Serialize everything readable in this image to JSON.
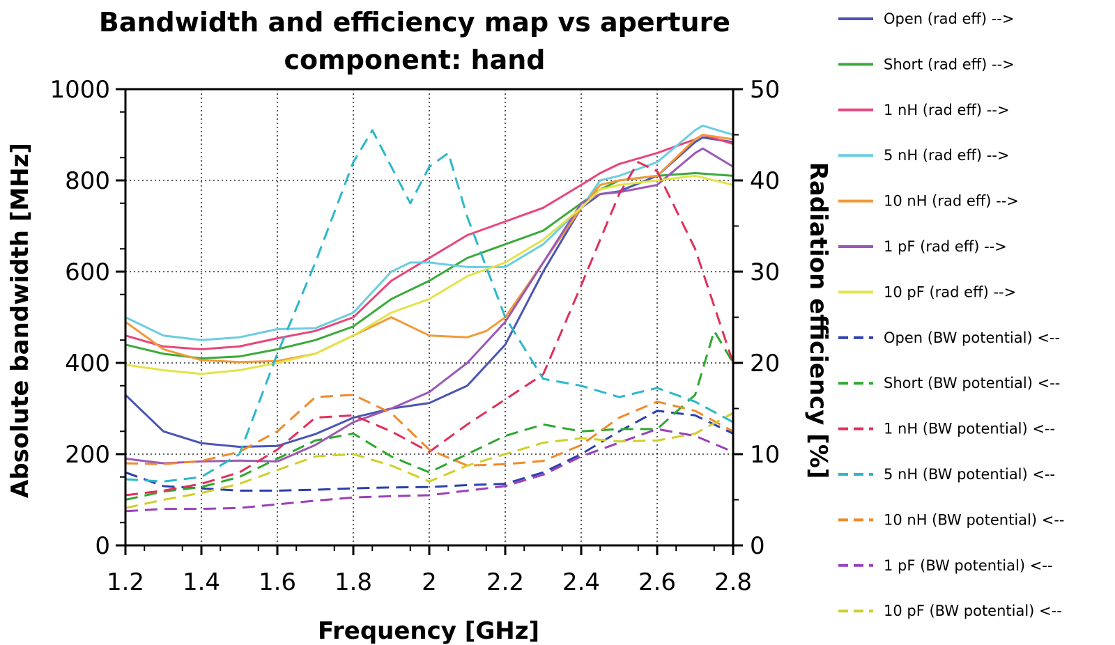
{
  "chart_data": {
    "type": "line",
    "title": "Bandwidth and efficiency map vs aperture",
    "subtitle": "component: hand",
    "xlabel": "Frequency [GHz]",
    "ylabel": "Absolute bandwidth [MHz]",
    "y2label": "Radiation efficiency [%]",
    "xlim": [
      1.2,
      2.8
    ],
    "ylim": [
      0,
      1000
    ],
    "y2lim": [
      0,
      50
    ],
    "x_ticks": [
      "1.2",
      "1.4",
      "1.6",
      "1.8",
      "2",
      "2.2",
      "2.4",
      "2.6",
      "2.8"
    ],
    "y_ticks": [
      "0",
      "200",
      "400",
      "600",
      "800",
      "1000"
    ],
    "y2_ticks": [
      "0",
      "10",
      "20",
      "30",
      "40",
      "50"
    ],
    "grid": true,
    "legend_position": "right",
    "series": [
      {
        "name": "Open (rad eff) -->",
        "color": "#4a55b5",
        "dash": false,
        "axis": "right",
        "x": [
          1.2,
          1.3,
          1.4,
          1.5,
          1.6,
          1.7,
          1.8,
          1.9,
          2.0,
          2.1,
          2.2,
          2.3,
          2.4,
          2.45,
          2.5,
          2.6,
          2.7,
          2.72,
          2.8
        ],
        "y": [
          16.5,
          12.5,
          11.2,
          10.8,
          10.9,
          12.2,
          14.0,
          15.0,
          15.6,
          17.5,
          22.0,
          30.0,
          37.0,
          38.5,
          38.8,
          40.5,
          44.2,
          44.7,
          44.2
        ]
      },
      {
        "name": "Short (rad eff) -->",
        "color": "#3aaa3a",
        "dash": false,
        "axis": "right",
        "x": [
          1.2,
          1.3,
          1.4,
          1.5,
          1.6,
          1.7,
          1.8,
          1.9,
          2.0,
          2.1,
          2.2,
          2.3,
          2.4,
          2.45,
          2.5,
          2.6,
          2.7,
          2.8
        ],
        "y": [
          22.0,
          21.0,
          20.5,
          20.7,
          21.5,
          22.5,
          24.0,
          27.0,
          29.0,
          31.5,
          33.0,
          34.5,
          37.5,
          39.0,
          40.0,
          40.5,
          40.8,
          40.5
        ]
      },
      {
        "name": "1 nH (rad eff) -->",
        "color": "#e8467a",
        "dash": false,
        "axis": "right",
        "x": [
          1.2,
          1.3,
          1.4,
          1.5,
          1.6,
          1.7,
          1.8,
          1.9,
          2.0,
          2.1,
          2.2,
          2.3,
          2.4,
          2.45,
          2.5,
          2.6,
          2.7,
          2.72,
          2.8
        ],
        "y": [
          23.0,
          21.8,
          21.5,
          21.8,
          22.7,
          23.5,
          25.0,
          29.0,
          31.5,
          34.0,
          35.5,
          37.0,
          39.5,
          40.8,
          41.8,
          43.0,
          44.5,
          45.0,
          44.0
        ]
      },
      {
        "name": "5 nH (rad eff) -->",
        "color": "#6bcde0",
        "dash": false,
        "axis": "right",
        "x": [
          1.2,
          1.3,
          1.4,
          1.5,
          1.6,
          1.7,
          1.8,
          1.9,
          1.95,
          2.0,
          2.1,
          2.2,
          2.3,
          2.4,
          2.45,
          2.5,
          2.6,
          2.7,
          2.72,
          2.8
        ],
        "y": [
          25.0,
          23.0,
          22.5,
          22.8,
          23.7,
          23.8,
          25.5,
          30.0,
          31.0,
          31.0,
          30.5,
          30.5,
          33.0,
          37.0,
          40.0,
          40.5,
          42.0,
          45.5,
          46.0,
          45.0
        ]
      },
      {
        "name": "10 nH (rad eff) -->",
        "color": "#f29a3a",
        "dash": false,
        "axis": "right",
        "x": [
          1.2,
          1.3,
          1.4,
          1.5,
          1.6,
          1.7,
          1.8,
          1.9,
          2.0,
          2.1,
          2.15,
          2.2,
          2.3,
          2.4,
          2.45,
          2.5,
          2.6,
          2.7,
          2.72,
          2.8
        ],
        "y": [
          24.5,
          21.5,
          20.3,
          20.1,
          20.2,
          21.0,
          23.0,
          25.0,
          23.0,
          22.8,
          23.5,
          25.0,
          31.0,
          37.0,
          39.5,
          40.0,
          40.5,
          44.5,
          45.0,
          44.5
        ]
      },
      {
        "name": "1 pF (rad eff) -->",
        "color": "#9b59b6",
        "dash": false,
        "axis": "right",
        "x": [
          1.2,
          1.3,
          1.4,
          1.5,
          1.6,
          1.7,
          1.8,
          1.9,
          2.0,
          2.1,
          2.2,
          2.3,
          2.4,
          2.45,
          2.5,
          2.6,
          2.7,
          2.72,
          2.8
        ],
        "y": [
          9.5,
          9.0,
          9.2,
          9.3,
          9.2,
          11.0,
          13.5,
          15.0,
          16.8,
          20.0,
          24.5,
          31.0,
          37.5,
          38.5,
          38.7,
          39.5,
          43.0,
          43.5,
          41.5
        ]
      },
      {
        "name": "10 pF (rad eff) -->",
        "color": "#e3e34a",
        "dash": false,
        "axis": "right",
        "x": [
          1.2,
          1.3,
          1.4,
          1.5,
          1.6,
          1.7,
          1.8,
          1.9,
          2.0,
          2.1,
          2.2,
          2.3,
          2.4,
          2.45,
          2.5,
          2.6,
          2.7,
          2.8
        ],
        "y": [
          19.8,
          19.2,
          18.8,
          19.2,
          20.0,
          21.0,
          23.0,
          25.5,
          27.0,
          29.5,
          31.0,
          33.5,
          37.0,
          39.0,
          39.5,
          40.0,
          40.5,
          39.5
        ]
      },
      {
        "name": "Open (BW potential) <--",
        "color": "#2b3fae",
        "dash": true,
        "axis": "left",
        "x": [
          1.2,
          1.3,
          1.4,
          1.5,
          1.6,
          1.7,
          1.8,
          1.9,
          2.0,
          2.1,
          2.2,
          2.3,
          2.4,
          2.5,
          2.6,
          2.7,
          2.8
        ],
        "y": [
          160,
          130,
          125,
          120,
          120,
          122,
          125,
          127,
          128,
          132,
          135,
          160,
          200,
          250,
          295,
          285,
          245
        ]
      },
      {
        "name": "Short (BW potential) <--",
        "color": "#2ea82e",
        "dash": true,
        "axis": "left",
        "x": [
          1.2,
          1.3,
          1.4,
          1.5,
          1.6,
          1.7,
          1.8,
          1.9,
          2.0,
          2.1,
          2.2,
          2.3,
          2.4,
          2.5,
          2.6,
          2.7,
          2.75,
          2.8
        ],
        "y": [
          100,
          118,
          128,
          150,
          190,
          230,
          245,
          195,
          160,
          200,
          240,
          265,
          250,
          255,
          255,
          330,
          470,
          400
        ]
      },
      {
        "name": "1 nH (BW potential) <--",
        "color": "#e0305a",
        "dash": true,
        "axis": "left",
        "x": [
          1.2,
          1.3,
          1.4,
          1.5,
          1.6,
          1.7,
          1.8,
          1.9,
          2.0,
          2.1,
          2.2,
          2.3,
          2.4,
          2.5,
          2.55,
          2.6,
          2.7,
          2.8
        ],
        "y": [
          110,
          120,
          135,
          160,
          210,
          280,
          285,
          250,
          205,
          265,
          320,
          375,
          570,
          770,
          840,
          820,
          650,
          400
        ]
      },
      {
        "name": "5 nH (BW potential) <--",
        "color": "#2bb8c9",
        "dash": true,
        "axis": "left",
        "x": [
          1.2,
          1.3,
          1.4,
          1.5,
          1.6,
          1.7,
          1.8,
          1.85,
          1.95,
          2.0,
          2.05,
          2.1,
          2.2,
          2.3,
          2.4,
          2.5,
          2.6,
          2.7,
          2.8
        ],
        "y": [
          145,
          140,
          150,
          200,
          420,
          620,
          840,
          910,
          750,
          830,
          860,
          720,
          500,
          365,
          350,
          325,
          345,
          315,
          270
        ]
      },
      {
        "name": "10 nH (BW potential) <--",
        "color": "#f08a2a",
        "dash": true,
        "axis": "left",
        "x": [
          1.2,
          1.3,
          1.4,
          1.5,
          1.6,
          1.7,
          1.8,
          1.9,
          2.0,
          2.1,
          2.2,
          2.3,
          2.4,
          2.5,
          2.6,
          2.7,
          2.8
        ],
        "y": [
          180,
          178,
          185,
          205,
          250,
          325,
          330,
          290,
          210,
          175,
          178,
          185,
          220,
          280,
          315,
          295,
          250
        ]
      },
      {
        "name": "1 pF (BW potential) <--",
        "color": "#9a40b8",
        "dash": true,
        "axis": "left",
        "x": [
          1.2,
          1.3,
          1.4,
          1.5,
          1.6,
          1.7,
          1.8,
          1.9,
          2.0,
          2.1,
          2.2,
          2.3,
          2.4,
          2.5,
          2.6,
          2.7,
          2.8
        ],
        "y": [
          75,
          80,
          80,
          82,
          90,
          98,
          105,
          108,
          110,
          120,
          130,
          155,
          195,
          225,
          255,
          240,
          205
        ]
      },
      {
        "name": "10 pF (BW potential) <--",
        "color": "#cfcf2a",
        "dash": true,
        "axis": "left",
        "x": [
          1.2,
          1.3,
          1.4,
          1.5,
          1.6,
          1.7,
          1.8,
          1.9,
          2.0,
          2.1,
          2.2,
          2.3,
          2.4,
          2.5,
          2.6,
          2.7,
          2.8
        ],
        "y": [
          82,
          100,
          115,
          135,
          165,
          195,
          200,
          175,
          140,
          175,
          200,
          225,
          235,
          228,
          230,
          245,
          290
        ]
      }
    ]
  }
}
